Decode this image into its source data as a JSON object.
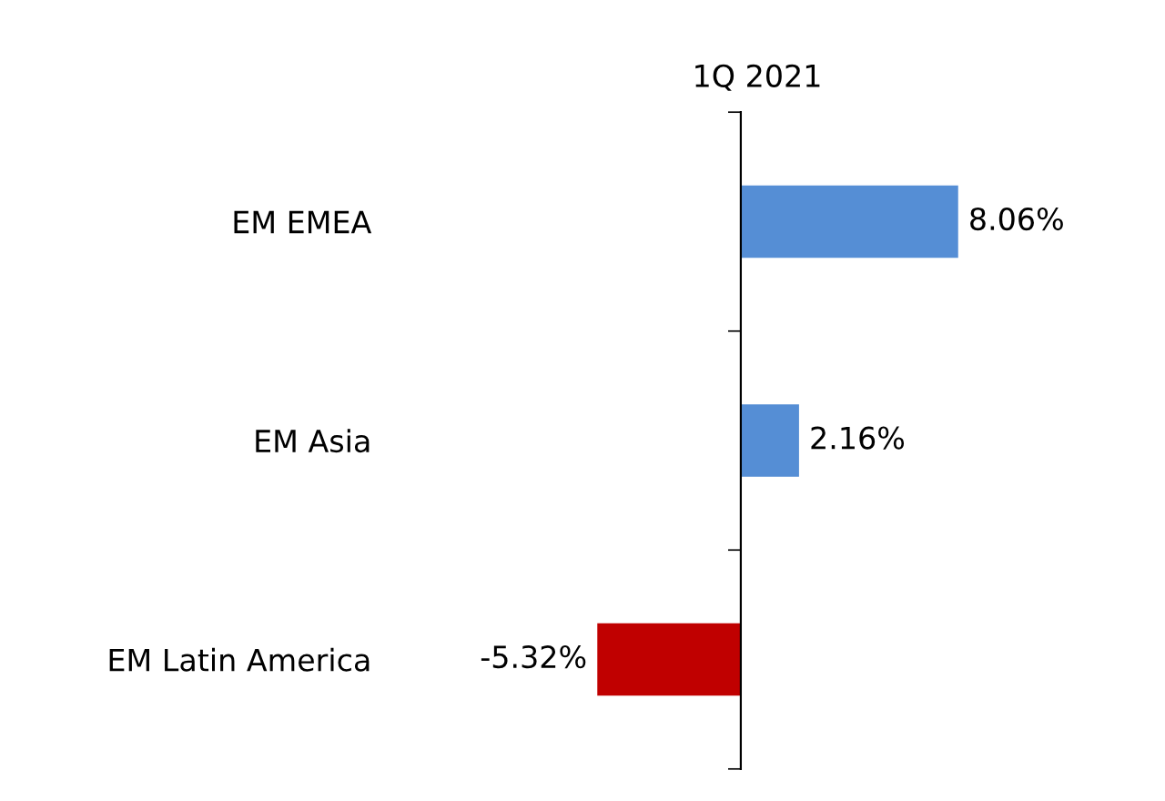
{
  "chart_data": {
    "type": "bar",
    "orientation": "horizontal",
    "title": "1Q 2021",
    "categories": [
      "EM EMEA",
      "EM Asia",
      "EM Latin America"
    ],
    "values": [
      8.06,
      2.16,
      -5.32
    ],
    "colors": [
      "#558ed5",
      "#558ed5",
      "#c00000"
    ],
    "value_labels": [
      "8.06%",
      "2.16%",
      "-5.32%"
    ],
    "grid": false,
    "legend": false
  }
}
